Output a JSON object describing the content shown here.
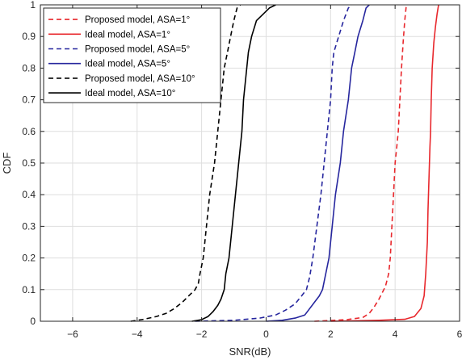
{
  "chart_data": {
    "type": "line",
    "xlabel": "SNR(dB)",
    "ylabel": "CDF",
    "xlim": [
      -7,
      6
    ],
    "ylim": [
      0,
      1
    ],
    "xticks": [
      -6,
      -4,
      -2,
      0,
      2,
      4,
      6
    ],
    "yticks": [
      0,
      0.1,
      0.2,
      0.3,
      0.4,
      0.5,
      0.6,
      0.7,
      0.8,
      0.9,
      1
    ],
    "grid": true,
    "legend_position": "top-left",
    "series": [
      {
        "name": "Proposed model, ASA=1°",
        "color": "#e8282d",
        "style": "dashed",
        "points": [
          [
            1.5,
            0
          ],
          [
            2.5,
            0.005
          ],
          [
            3.0,
            0.012
          ],
          [
            3.2,
            0.025
          ],
          [
            3.35,
            0.045
          ],
          [
            3.5,
            0.07
          ],
          [
            3.7,
            0.11
          ],
          [
            3.8,
            0.15
          ],
          [
            3.85,
            0.2
          ],
          [
            3.9,
            0.3
          ],
          [
            3.95,
            0.4
          ],
          [
            4.0,
            0.5
          ],
          [
            4.05,
            0.55
          ],
          [
            4.1,
            0.6
          ],
          [
            4.15,
            0.7
          ],
          [
            4.2,
            0.8
          ],
          [
            4.25,
            0.88
          ],
          [
            4.3,
            0.95
          ],
          [
            4.35,
            1.0
          ]
        ]
      },
      {
        "name": "Ideal model, ASA=1°",
        "color": "#e8282d",
        "style": "solid",
        "points": [
          [
            2.0,
            0
          ],
          [
            3.5,
            0.003
          ],
          [
            4.3,
            0.006
          ],
          [
            4.6,
            0.015
          ],
          [
            4.8,
            0.04
          ],
          [
            4.9,
            0.08
          ],
          [
            4.95,
            0.15
          ],
          [
            5.0,
            0.25
          ],
          [
            5.02,
            0.35
          ],
          [
            5.05,
            0.45
          ],
          [
            5.08,
            0.55
          ],
          [
            5.1,
            0.6
          ],
          [
            5.12,
            0.7
          ],
          [
            5.15,
            0.8
          ],
          [
            5.2,
            0.88
          ],
          [
            5.25,
            0.93
          ],
          [
            5.3,
            0.97
          ],
          [
            5.35,
            1.0
          ]
        ]
      },
      {
        "name": "Proposed model, ASA=5°",
        "color": "#26269e",
        "style": "dashed",
        "points": [
          [
            -2.2,
            0
          ],
          [
            -1.0,
            0.003
          ],
          [
            -0.2,
            0.01
          ],
          [
            0.3,
            0.02
          ],
          [
            0.6,
            0.035
          ],
          [
            0.9,
            0.055
          ],
          [
            1.1,
            0.08
          ],
          [
            1.25,
            0.1
          ],
          [
            1.35,
            0.14
          ],
          [
            1.45,
            0.2
          ],
          [
            1.55,
            0.28
          ],
          [
            1.7,
            0.4
          ],
          [
            1.8,
            0.5
          ],
          [
            1.9,
            0.6
          ],
          [
            2.0,
            0.7
          ],
          [
            2.05,
            0.8
          ],
          [
            2.1,
            0.85
          ],
          [
            2.25,
            0.9
          ],
          [
            2.4,
            0.95
          ],
          [
            2.55,
            0.99
          ],
          [
            2.65,
            1.0
          ]
        ]
      },
      {
        "name": "Ideal model, ASA=5°",
        "color": "#26269e",
        "style": "solid",
        "points": [
          [
            0.0,
            0
          ],
          [
            0.5,
            0.003
          ],
          [
            0.9,
            0.01
          ],
          [
            1.2,
            0.02
          ],
          [
            1.35,
            0.04
          ],
          [
            1.5,
            0.06
          ],
          [
            1.65,
            0.08
          ],
          [
            1.75,
            0.1
          ],
          [
            1.85,
            0.15
          ],
          [
            1.95,
            0.2
          ],
          [
            2.05,
            0.3
          ],
          [
            2.15,
            0.4
          ],
          [
            2.3,
            0.5
          ],
          [
            2.4,
            0.6
          ],
          [
            2.55,
            0.7
          ],
          [
            2.65,
            0.8
          ],
          [
            2.75,
            0.85
          ],
          [
            2.85,
            0.9
          ],
          [
            3.0,
            0.95
          ],
          [
            3.1,
            0.99
          ],
          [
            3.2,
            1.0
          ]
        ]
      },
      {
        "name": "Proposed model, ASA=10°",
        "color": "#000000",
        "style": "dashed",
        "points": [
          [
            -4.2,
            0
          ],
          [
            -3.8,
            0.006
          ],
          [
            -3.4,
            0.015
          ],
          [
            -3.1,
            0.025
          ],
          [
            -2.85,
            0.04
          ],
          [
            -2.6,
            0.06
          ],
          [
            -2.4,
            0.08
          ],
          [
            -2.2,
            0.1
          ],
          [
            -2.1,
            0.12
          ],
          [
            -2.05,
            0.15
          ],
          [
            -1.95,
            0.2
          ],
          [
            -1.85,
            0.3
          ],
          [
            -1.75,
            0.4
          ],
          [
            -1.6,
            0.5
          ],
          [
            -1.5,
            0.6
          ],
          [
            -1.4,
            0.7
          ],
          [
            -1.3,
            0.8
          ],
          [
            -1.2,
            0.85
          ],
          [
            -1.1,
            0.9
          ],
          [
            -1.0,
            0.95
          ],
          [
            -0.9,
            0.99
          ],
          [
            -0.8,
            1.0
          ]
        ]
      },
      {
        "name": "Ideal model, ASA=10°",
        "color": "#000000",
        "style": "solid",
        "points": [
          [
            -2.3,
            0
          ],
          [
            -2.0,
            0.005
          ],
          [
            -1.8,
            0.015
          ],
          [
            -1.65,
            0.03
          ],
          [
            -1.5,
            0.05
          ],
          [
            -1.4,
            0.07
          ],
          [
            -1.3,
            0.1
          ],
          [
            -1.25,
            0.15
          ],
          [
            -1.15,
            0.2
          ],
          [
            -1.05,
            0.3
          ],
          [
            -0.95,
            0.4
          ],
          [
            -0.85,
            0.5
          ],
          [
            -0.75,
            0.6
          ],
          [
            -0.7,
            0.7
          ],
          [
            -0.6,
            0.8
          ],
          [
            -0.55,
            0.85
          ],
          [
            -0.45,
            0.9
          ],
          [
            -0.3,
            0.95
          ],
          [
            -0.1,
            0.97
          ],
          [
            0.1,
            0.99
          ],
          [
            0.3,
            1.0
          ]
        ]
      }
    ]
  }
}
